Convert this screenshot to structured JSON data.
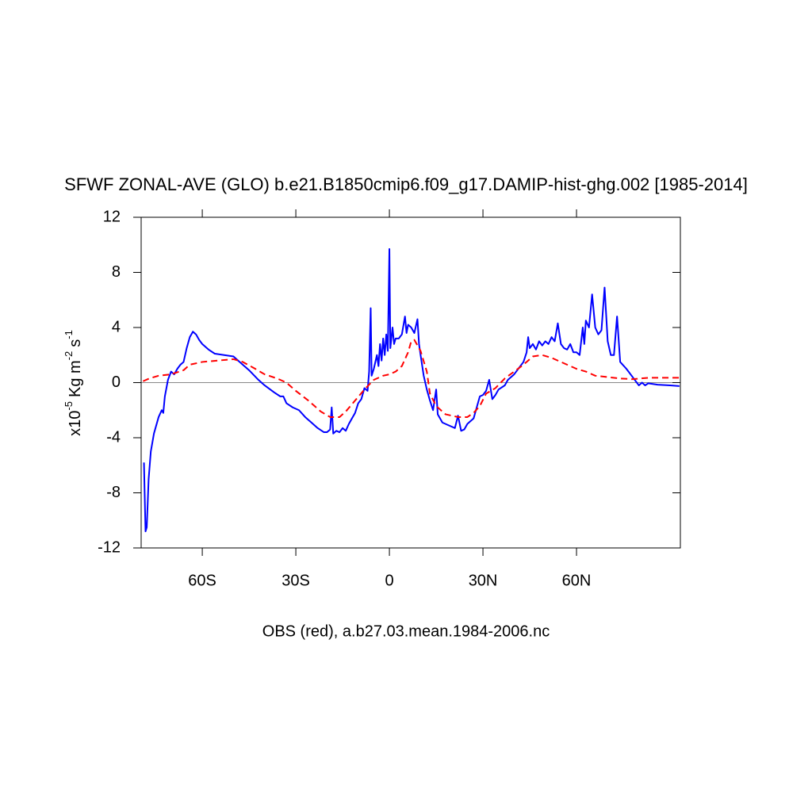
{
  "chart_data": {
    "type": "line",
    "title": "SFWF ZONAL-AVE (GLO) b.e21.B1850cmip6.f09_g17.DAMIP-hist-ghg.002 [1985-2014]",
    "y_label_parts": [
      "x10",
      "-5",
      "Kg m",
      "-2",
      "s",
      "-1"
    ],
    "subtitle": "OBS (red), a.b27.03.mean.1984-2006.nc",
    "xlim": [
      -79.6,
      93.3
    ],
    "ylim": [
      -12,
      12
    ],
    "xticks": [
      {
        "value": -60,
        "label": "60S"
      },
      {
        "value": -30,
        "label": "30S"
      },
      0,
      {
        "value": 30,
        "label": "30N"
      },
      {
        "value": 60,
        "label": "60N"
      }
    ],
    "yticks": [
      12,
      8,
      4,
      0,
      -4,
      -8,
      -12
    ],
    "zero_line": true,
    "series": [
      {
        "color": "#0000ff",
        "dashed": false,
        "x": [
          -78.7,
          -78.2,
          -77.8,
          -77.2,
          -76.5,
          -75.5,
          -74,
          -73,
          -72.5,
          -72,
          -71,
          -70,
          -69,
          -68,
          -67,
          -66,
          -65,
          -64,
          -63,
          -62,
          -61,
          -60,
          -58,
          -56,
          -53,
          -50,
          -48,
          -45,
          -42,
          -40,
          -37,
          -35,
          -34,
          -33,
          -31,
          -29,
          -27,
          -25,
          -23,
          -21,
          -20,
          -19,
          -18.5,
          -18,
          -17,
          -16,
          -15,
          -14,
          -13,
          -12,
          -11,
          -10,
          -9,
          -8,
          -7,
          -6.5,
          -6,
          -5.7,
          -5,
          -4,
          -3.5,
          -3,
          -2.5,
          -2,
          -1.5,
          -1,
          -0.5,
          0,
          0.3,
          1,
          1.5,
          2,
          3,
          4,
          5,
          5.5,
          6,
          7,
          8,
          9,
          9.5,
          10,
          11,
          12,
          13,
          14,
          15,
          15.5,
          17,
          19,
          21,
          22,
          23,
          24,
          25,
          27,
          28,
          29,
          30,
          31,
          32,
          33,
          34,
          35,
          37,
          38,
          40,
          42,
          43,
          44,
          44.5,
          45,
          46,
          47,
          48,
          49,
          50,
          51,
          52,
          53,
          54,
          55,
          56,
          57,
          58,
          59,
          60,
          61,
          62,
          62.5,
          63,
          64,
          65,
          66,
          67,
          68,
          69,
          70,
          71,
          72,
          73,
          74,
          76,
          78,
          80,
          81,
          82,
          83,
          86,
          90,
          93
        ],
        "values": [
          -5.8,
          -10.8,
          -10.5,
          -7,
          -5.0,
          -3.7,
          -2.5,
          -2.0,
          -2.2,
          -1.0,
          0.2,
          0.8,
          0.6,
          1.0,
          1.3,
          1.5,
          2.5,
          3.3,
          3.7,
          3.5,
          3.1,
          2.8,
          2.4,
          2.1,
          2.0,
          1.9,
          1.5,
          0.9,
          0.2,
          -0.2,
          -0.7,
          -1.0,
          -1.0,
          -1.5,
          -1.8,
          -2.0,
          -2.5,
          -2.9,
          -3.3,
          -3.6,
          -3.6,
          -3.4,
          -1.8,
          -3.7,
          -3.5,
          -3.6,
          -3.3,
          -3.5,
          -3.0,
          -2.6,
          -2.2,
          -1.5,
          -1.2,
          -0.4,
          -0.6,
          0.8,
          5.4,
          0.5,
          1.0,
          2.0,
          1.2,
          2.8,
          1.6,
          3.2,
          2.0,
          3.5,
          2.3,
          9.7,
          2.5,
          4.0,
          2.8,
          3.2,
          3.2,
          3.5,
          4.8,
          3.6,
          4.2,
          4.0,
          3.6,
          4.6,
          2.8,
          2.0,
          0.5,
          -0.5,
          -1.3,
          -2.0,
          -0.5,
          -2.3,
          -2.9,
          -3.1,
          -3.3,
          -2.4,
          -3.5,
          -3.4,
          -3.0,
          -2.6,
          -1.8,
          -1.0,
          -0.9,
          -0.6,
          0.2,
          -1.2,
          -0.9,
          -0.5,
          -0.2,
          0.2,
          0.6,
          1.2,
          1.5,
          2.2,
          3.3,
          2.5,
          2.8,
          2.4,
          3.0,
          2.7,
          3.0,
          2.8,
          3.3,
          3.0,
          4.3,
          2.8,
          2.5,
          2.4,
          2.8,
          2.2,
          2.2,
          2.0,
          4.0,
          2.8,
          4.5,
          4.0,
          6.4,
          4.0,
          3.5,
          3.8,
          6.9,
          3.0,
          2.0,
          2.0,
          4.8,
          1.5,
          1.0,
          0.4,
          -0.2,
          0.0,
          -0.2,
          -0.05,
          -0.15,
          -0.2,
          -0.25
        ]
      },
      {
        "color": "#ff0000",
        "dashed": true,
        "x": [
          -79,
          -77,
          -74,
          -70,
          -66,
          -64,
          -60,
          -55,
          -50,
          -47,
          -43,
          -40,
          -36,
          -33,
          -30,
          -26,
          -22,
          -19,
          -16,
          -14,
          -11,
          -8,
          -5,
          -2,
          0,
          2,
          4,
          6,
          7,
          8,
          10,
          12,
          13,
          15,
          18,
          22,
          25,
          27,
          29,
          31,
          34,
          37,
          40,
          43,
          46,
          49,
          52,
          55,
          58,
          60,
          63,
          66,
          70,
          74,
          78,
          83,
          93
        ],
        "values": [
          0.1,
          0.3,
          0.5,
          0.6,
          0.9,
          1.3,
          1.5,
          1.6,
          1.7,
          1.5,
          1.0,
          0.6,
          0.3,
          0.0,
          -0.6,
          -1.3,
          -2.1,
          -2.5,
          -2.5,
          -2.1,
          -1.3,
          -0.5,
          0.2,
          0.5,
          0.6,
          0.8,
          1.2,
          2.2,
          3.0,
          3.1,
          2.3,
          0.8,
          -0.8,
          -1.7,
          -2.3,
          -2.5,
          -2.5,
          -2.2,
          -1.7,
          -0.8,
          -0.4,
          0.3,
          0.8,
          1.3,
          1.9,
          2.0,
          1.8,
          1.5,
          1.2,
          1.0,
          0.8,
          0.5,
          0.4,
          0.3,
          0.25,
          0.35,
          0.35
        ]
      }
    ]
  }
}
